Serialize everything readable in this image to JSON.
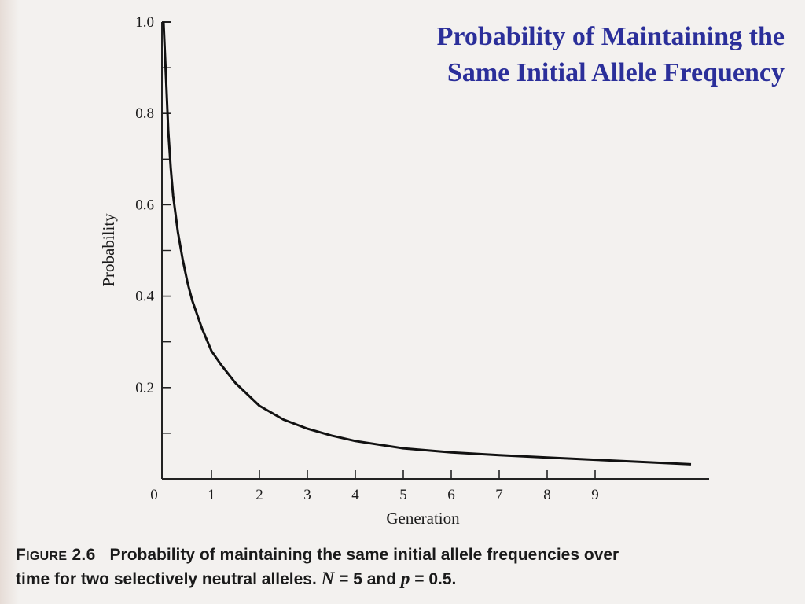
{
  "title": {
    "line1": "Probability of Maintaining the",
    "line2": "Same Initial Allele Frequency"
  },
  "caption": {
    "figure_first": "F",
    "figure_rest": "IGURE",
    "figure_number": "2.6",
    "line1_text": "Probability of maintaining the same initial allele frequencies over",
    "line2_text": "time for two selectively neutral alleles.",
    "n_var": "N",
    "n_eq": " = 5 and ",
    "p_var": "p",
    "p_eq": " = 0.5."
  },
  "colors": {
    "title": "#2b2f9a",
    "curve": "#111111",
    "axis": "#222222"
  },
  "chart_data": {
    "type": "line",
    "xlabel": "Generation",
    "ylabel": "Probability",
    "xlim": [
      0,
      11
    ],
    "ylim": [
      0,
      1.0
    ],
    "x_ticks": [
      0,
      1,
      2,
      3,
      4,
      5,
      6,
      7,
      8,
      9
    ],
    "x_tick_labels": [
      "0",
      "1",
      "2",
      "3",
      "4",
      "5",
      "6",
      "7",
      "8",
      "9"
    ],
    "y_ticks": [
      0.2,
      0.4,
      0.6,
      0.8,
      1.0
    ],
    "y_tick_labels": [
      "0.2",
      "0.4",
      "0.6",
      "0.8",
      "1.0"
    ],
    "y_minor_ticks": [
      0.1,
      0.3,
      0.5,
      0.7,
      0.9
    ],
    "grid": false,
    "series": [
      {
        "x": [
          0,
          0.05,
          0.1,
          0.15,
          0.2,
          0.3,
          0.4,
          0.5,
          0.6,
          0.8,
          1.0,
          1.2,
          1.5,
          2.0,
          2.5,
          3.0,
          3.5,
          4.0,
          5.0,
          6.0,
          7.0,
          8.0,
          9.0,
          10.0,
          11.0
        ],
        "y": [
          1.0,
          0.88,
          0.76,
          0.68,
          0.62,
          0.54,
          0.48,
          0.43,
          0.39,
          0.33,
          0.28,
          0.25,
          0.21,
          0.16,
          0.13,
          0.11,
          0.095,
          0.083,
          0.067,
          0.058,
          0.052,
          0.047,
          0.042,
          0.037,
          0.032
        ]
      }
    ]
  }
}
